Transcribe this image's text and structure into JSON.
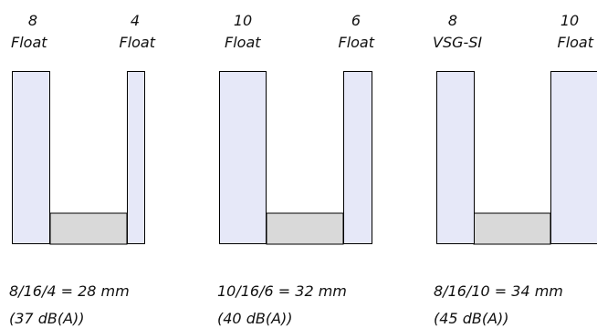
{
  "colors": {
    "pane": "#e6e8f8",
    "gap": "#d9d9d9",
    "stroke": "#000000"
  },
  "units": [
    {
      "left_label": {
        "thickness": "8",
        "type": "Float"
      },
      "right_label": {
        "thickness": "4",
        "type": "Float"
      },
      "formula": "8/16/4 = 28 mm",
      "rating": "(37 dB(A))"
    },
    {
      "left_label": {
        "thickness": "10",
        "type": "Float"
      },
      "right_label": {
        "thickness": "6",
        "type": "Float"
      },
      "formula": "10/16/6 = 32 mm",
      "rating": "(40 dB(A))"
    },
    {
      "left_label": {
        "thickness": "8",
        "type": "VSG-SI"
      },
      "right_label": {
        "thickness": "10",
        "type": "Float"
      },
      "formula": "8/16/10 = 34 mm",
      "rating": "(45 dB(A))"
    }
  ]
}
